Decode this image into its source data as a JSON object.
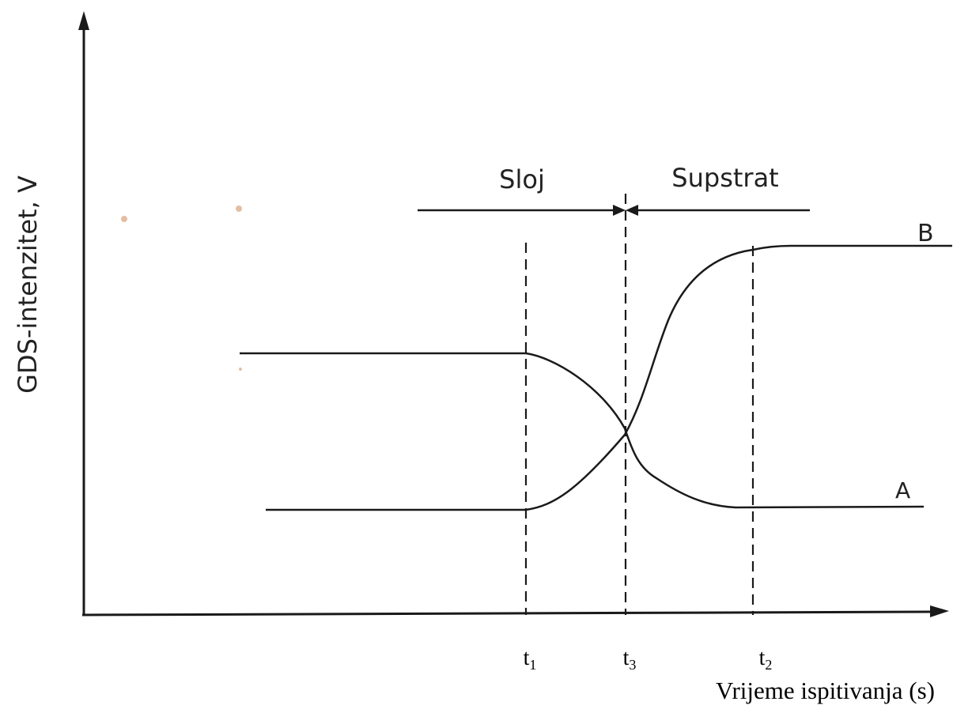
{
  "diagram": {
    "y_axis_label": "GDS-intenzitet, V",
    "x_axis_label": "Vrijeme ispitivanja (s)",
    "region_left_label": "Sloj",
    "region_right_label": "Supstrat",
    "curve_a_label": "A",
    "curve_b_label": "B",
    "marker_t1": {
      "base": "t",
      "sub": "1"
    },
    "marker_t3": {
      "base": "t",
      "sub": "3"
    },
    "marker_t2": {
      "base": "t",
      "sub": "2"
    }
  }
}
